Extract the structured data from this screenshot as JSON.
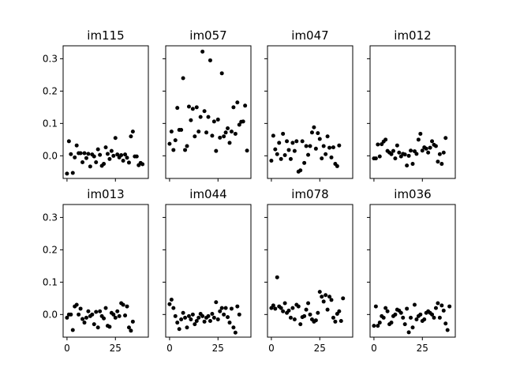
{
  "chart_data": {
    "type": "scatter",
    "layout": "2x4 small multiples, shared axes",
    "xlim": [
      -2,
      42
    ],
    "ylim": [
      -0.07,
      0.34
    ],
    "xticks": [
      0,
      25
    ],
    "xtick_labels": [
      "0",
      "25"
    ],
    "yticks": [
      0.0,
      0.1,
      0.2,
      0.3
    ],
    "ytick_labels": [
      "0.0",
      "0.1",
      "0.2",
      "0.3"
    ],
    "marker_color": "#000000",
    "grid": false,
    "legend": "none",
    "panels": [
      {
        "title": "im115",
        "y": [
          -0.055,
          0.045,
          0.005,
          -0.053,
          -0.005,
          0.032,
          0.008,
          0.008,
          -0.02,
          0.008,
          -0.007,
          0.006,
          -0.033,
          0.004,
          -0.002,
          -0.02,
          0.02,
          0.003,
          -0.031,
          -0.025,
          0.026,
          0.006,
          -0.01,
          0.015,
          0.0,
          0.055,
          0.004,
          -0.005,
          0.002,
          -0.015,
          0.004,
          -0.006,
          -0.021,
          0.06,
          0.075,
          -0.002,
          -0.002,
          -0.029,
          -0.022,
          -0.026
        ]
      },
      {
        "title": "im057",
        "y": [
          0.037,
          0.075,
          0.018,
          0.048,
          0.148,
          0.08,
          0.08,
          0.24,
          0.018,
          0.03,
          0.152,
          0.11,
          0.145,
          0.06,
          0.15,
          0.075,
          0.12,
          0.322,
          0.138,
          0.072,
          0.12,
          0.295,
          0.062,
          0.106,
          0.015,
          0.112,
          0.056,
          0.255,
          0.06,
          0.072,
          0.085,
          0.04,
          0.075,
          0.15,
          0.068,
          0.165,
          0.096,
          0.105,
          0.106,
          0.155,
          0.016
        ]
      },
      {
        "title": "im047",
        "y": [
          -0.015,
          0.062,
          0.02,
          0.005,
          0.04,
          -0.01,
          0.068,
          0.002,
          0.045,
          0.018,
          -0.01,
          0.04,
          0.015,
          0.045,
          -0.049,
          -0.045,
          0.045,
          -0.022,
          0.03,
          0.003,
          0.03,
          0.072,
          0.088,
          0.022,
          0.07,
          0.052,
          -0.008,
          0.03,
          0.005,
          0.06,
          0.025,
          -0.005,
          0.026,
          -0.025,
          -0.032,
          0.032
        ]
      },
      {
        "title": "im012",
        "y": [
          -0.008,
          -0.008,
          0.035,
          -0.002,
          0.036,
          0.044,
          0.05,
          0.015,
          0.01,
          0.005,
          0.015,
          -0.008,
          0.032,
          0.01,
          -0.002,
          0.006,
          0.004,
          -0.03,
          0.0,
          0.016,
          -0.025,
          0.014,
          0.006,
          0.05,
          0.068,
          0.016,
          0.026,
          0.022,
          0.01,
          0.025,
          0.045,
          0.034,
          0.03,
          -0.018,
          0.005,
          -0.025,
          0.01,
          0.055
        ]
      },
      {
        "title": "im013",
        "y": [
          -0.01,
          0.0,
          0.0,
          -0.048,
          0.025,
          0.03,
          0.0,
          0.018,
          -0.014,
          -0.025,
          -0.01,
          0.01,
          -0.005,
          0.0,
          -0.03,
          0.008,
          -0.04,
          0.01,
          -0.005,
          -0.012,
          0.02,
          -0.035,
          -0.038,
          0.005,
          0.0,
          -0.01,
          0.01,
          -0.005,
          0.035,
          0.03,
          -0.003,
          0.025,
          -0.04,
          -0.05,
          -0.022
        ]
      },
      {
        "title": "im044",
        "y": [
          0.032,
          0.046,
          0.02,
          -0.005,
          -0.025,
          -0.045,
          -0.015,
          0.005,
          -0.01,
          -0.04,
          -0.005,
          -0.015,
          0.0,
          -0.03,
          -0.02,
          -0.01,
          0.002,
          -0.005,
          -0.022,
          -0.01,
          -0.005,
          -0.02,
          0.002,
          -0.01,
          0.038,
          -0.015,
          0.01,
          0.02,
          0.0,
          0.02,
          -0.008,
          -0.025,
          0.018,
          -0.04,
          -0.056,
          0.025,
          0.0
        ]
      },
      {
        "title": "im078",
        "y": [
          0.02,
          0.028,
          0.018,
          0.115,
          0.025,
          0.02,
          0.01,
          0.035,
          0.005,
          0.012,
          -0.01,
          0.02,
          -0.015,
          0.03,
          0.025,
          -0.03,
          -0.008,
          -0.005,
          0.015,
          0.035,
          0.0,
          -0.015,
          -0.022,
          -0.018,
          0.005,
          0.07,
          0.055,
          0.04,
          0.06,
          0.015,
          0.055,
          0.045,
          -0.01,
          -0.022,
          0.002,
          0.01,
          -0.02,
          0.05
        ]
      },
      {
        "title": "im036",
        "y": [
          -0.035,
          0.025,
          -0.035,
          -0.025,
          -0.005,
          -0.01,
          0.02,
          0.01,
          -0.03,
          -0.025,
          -0.005,
          0.0,
          0.015,
          0.012,
          0.005,
          -0.01,
          -0.03,
          0.018,
          -0.055,
          -0.01,
          -0.04,
          0.03,
          -0.015,
          -0.005,
          0.0,
          -0.02,
          -0.015,
          0.005,
          0.01,
          0.005,
          0.0,
          -0.01,
          0.02,
          0.035,
          -0.01,
          0.028,
          0.012,
          -0.028,
          -0.048,
          0.025
        ]
      }
    ]
  }
}
